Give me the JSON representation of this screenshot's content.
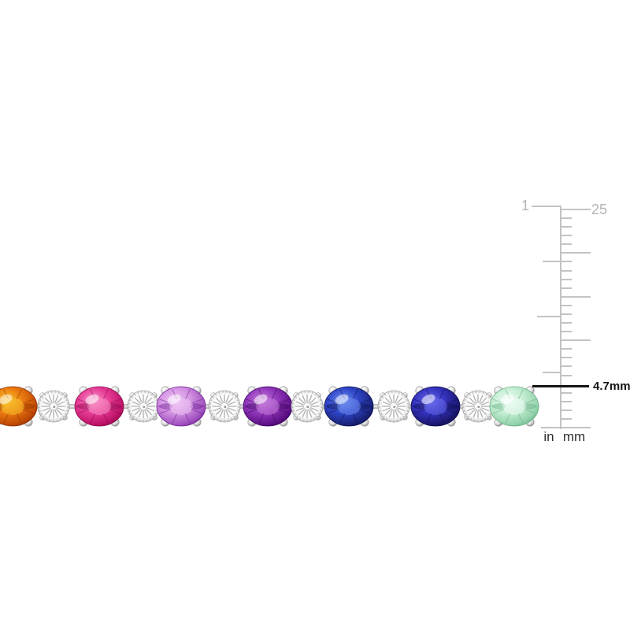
{
  "page": {
    "background": "#ffffff"
  },
  "bracelet": {
    "description": "Multi-color oval gemstone and diamond illusion-link tennis bracelet in white metal",
    "gems": [
      {
        "kind": "oval",
        "name": "gem-orange",
        "colors": {
          "light": "#f8c42e",
          "base": "#ec7c10",
          "dark": "#c04a05",
          "edge": "#8e2e00"
        }
      },
      {
        "kind": "round",
        "name": "diamond-link"
      },
      {
        "kind": "oval",
        "name": "gem-pink",
        "colors": {
          "light": "#f795c7",
          "base": "#e73d97",
          "dark": "#bc1266",
          "edge": "#8a0a49"
        }
      },
      {
        "kind": "round",
        "name": "diamond-link"
      },
      {
        "kind": "oval",
        "name": "gem-light-purple",
        "colors": {
          "light": "#efc8f3",
          "base": "#d494e3",
          "dark": "#a152bf",
          "edge": "#6d2093"
        }
      },
      {
        "kind": "round",
        "name": "diamond-link"
      },
      {
        "kind": "oval",
        "name": "gem-purple",
        "colors": {
          "light": "#c77fd9",
          "base": "#9338bd",
          "dark": "#5f1187",
          "edge": "#3b045e"
        }
      },
      {
        "kind": "round",
        "name": "diamond-link"
      },
      {
        "kind": "oval",
        "name": "gem-blue",
        "colors": {
          "light": "#7292f2",
          "base": "#2f46c9",
          "dark": "#1a2378",
          "edge": "#0c1150"
        }
      },
      {
        "kind": "round",
        "name": "diamond-link"
      },
      {
        "kind": "oval",
        "name": "gem-blue-violet",
        "colors": {
          "light": "#6a6ceb",
          "base": "#3533c0",
          "dark": "#1b186e",
          "edge": "#0e0b4a"
        }
      },
      {
        "kind": "round",
        "name": "diamond-link"
      },
      {
        "kind": "oval",
        "name": "gem-light-green",
        "colors": {
          "light": "#f0fcf5",
          "base": "#c5eed4",
          "dark": "#92d2ab",
          "edge": "#67ae84"
        }
      }
    ],
    "metal_colors": {
      "highlight": "#ffffff",
      "mid": "#e2e2e2",
      "shadow": "#8f8f8f",
      "ray": "#aeaeae"
    }
  },
  "ruler": {
    "inch_max_label": "1",
    "mm_max_label": "25",
    "unit_in": "in",
    "unit_mm": "mm",
    "indicator_label": "4.7mm",
    "indicator_value_mm": 4.7,
    "mm_max": 25,
    "colors": {
      "tick": "#c3c3c3",
      "scale_label": "#b3b3b3",
      "indicator": "#141414",
      "unit_label": "#2e2e2e"
    }
  }
}
